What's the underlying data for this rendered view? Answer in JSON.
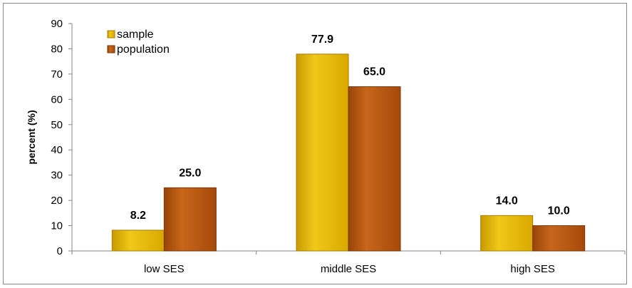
{
  "chart_data": {
    "type": "bar",
    "title": "",
    "xlabel": "",
    "ylabel": "percent (%)",
    "categories": [
      "low SES",
      "middle SES",
      "high SES"
    ],
    "series": [
      {
        "name": "sample",
        "values": [
          8.2,
          77.9,
          14.0
        ],
        "value_labels": [
          "8.2",
          "77.9",
          "14.0"
        ]
      },
      {
        "name": "population",
        "values": [
          25.0,
          65.0,
          10.0
        ],
        "value_labels": [
          "25.0",
          "65.0",
          "10.0"
        ]
      }
    ],
    "ylim": [
      0,
      90
    ],
    "yticks": [
      "0",
      "10",
      "20",
      "30",
      "40",
      "50",
      "60",
      "70",
      "80",
      "90"
    ],
    "grid": false,
    "legend_position": "top-left",
    "colors": {
      "sample": "#e0b000",
      "population": "#b5540f"
    }
  }
}
